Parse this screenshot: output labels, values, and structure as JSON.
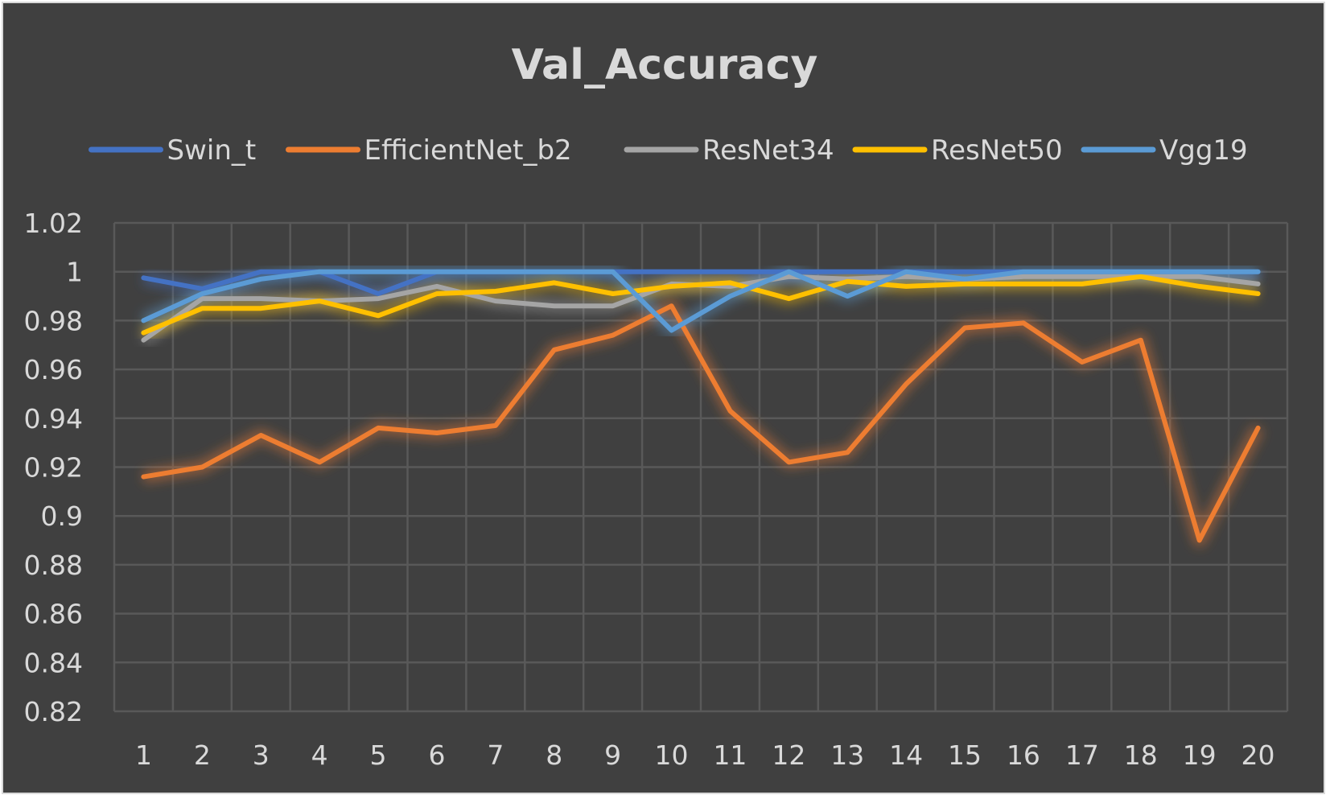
{
  "chart_data": {
    "type": "line",
    "title": "Val_Accuracy",
    "xlabel": "",
    "ylabel": "",
    "x": [
      1,
      2,
      3,
      4,
      5,
      6,
      7,
      8,
      9,
      10,
      11,
      12,
      13,
      14,
      15,
      16,
      17,
      18,
      19,
      20
    ],
    "ylim": [
      0.82,
      1.02
    ],
    "yticks": [
      "1.02",
      "1",
      "0.98",
      "0.96",
      "0.94",
      "0.92",
      "0.9",
      "0.88",
      "0.86",
      "0.84",
      "0.82"
    ],
    "grid": true,
    "legend_position": "top",
    "series": [
      {
        "name": "Swin_t",
        "color": "#4472c4",
        "values": [
          0.9975,
          0.993,
          1,
          1,
          0.991,
          1,
          1,
          1,
          1,
          1,
          1,
          1,
          1,
          1,
          1,
          1,
          1,
          1,
          1,
          1
        ]
      },
      {
        "name": "EfficientNet_b2",
        "color": "#ed7d31",
        "values": [
          0.916,
          0.92,
          0.933,
          0.922,
          0.936,
          0.934,
          0.937,
          0.968,
          0.974,
          0.986,
          0.943,
          0.922,
          0.926,
          0.954,
          0.977,
          0.979,
          0.963,
          0.972,
          0.89,
          0.936
        ]
      },
      {
        "name": "ResNet34",
        "color": "#a5a5a5",
        "values": [
          0.972,
          0.989,
          0.989,
          0.988,
          0.989,
          0.994,
          0.988,
          0.986,
          0.986,
          0.995,
          0.994,
          0.998,
          0.997,
          0.998,
          0.997,
          0.998,
          0.998,
          0.998,
          0.998,
          0.995
        ]
      },
      {
        "name": "ResNet50",
        "color": "#ffc000",
        "values": [
          0.975,
          0.985,
          0.985,
          0.988,
          0.982,
          0.991,
          0.992,
          0.9955,
          0.991,
          0.994,
          0.9955,
          0.989,
          0.996,
          0.994,
          0.995,
          0.995,
          0.995,
          0.998,
          0.994,
          0.991
        ]
      },
      {
        "name": "Vgg19",
        "color": "#5b9bd5",
        "values": [
          0.98,
          0.991,
          0.997,
          1,
          1,
          1,
          1,
          1,
          1,
          0.976,
          0.99,
          1,
          0.99,
          1,
          0.997,
          1,
          1,
          1,
          1,
          1
        ]
      }
    ]
  }
}
